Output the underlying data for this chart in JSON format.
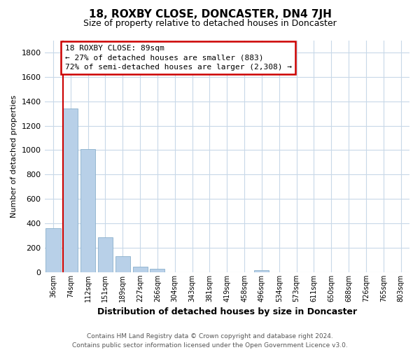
{
  "title": "18, ROXBY CLOSE, DONCASTER, DN4 7JH",
  "subtitle": "Size of property relative to detached houses in Doncaster",
  "xlabel": "Distribution of detached houses by size in Doncaster",
  "ylabel": "Number of detached properties",
  "bar_labels": [
    "36sqm",
    "74sqm",
    "112sqm",
    "151sqm",
    "189sqm",
    "227sqm",
    "266sqm",
    "304sqm",
    "343sqm",
    "381sqm",
    "419sqm",
    "458sqm",
    "496sqm",
    "534sqm",
    "573sqm",
    "611sqm",
    "650sqm",
    "688sqm",
    "726sqm",
    "765sqm",
    "803sqm"
  ],
  "bar_values": [
    360,
    1340,
    1010,
    285,
    130,
    47,
    30,
    0,
    0,
    0,
    0,
    0,
    18,
    0,
    0,
    0,
    0,
    0,
    0,
    0,
    0
  ],
  "bar_color": "#b8d0e8",
  "bar_edge_color": "#8ab0cc",
  "property_line_color": "#cc0000",
  "annotation_line0": "18 ROXBY CLOSE: 89sqm",
  "annotation_line1": "← 27% of detached houses are smaller (883)",
  "annotation_line2": "72% of semi-detached houses are larger (2,308) →",
  "annotation_box_color": "#ffffff",
  "annotation_box_edge": "#cc0000",
  "ylim": [
    0,
    1900
  ],
  "yticks": [
    0,
    200,
    400,
    600,
    800,
    1000,
    1200,
    1400,
    1600,
    1800
  ],
  "footer_line1": "Contains HM Land Registry data © Crown copyright and database right 2024.",
  "footer_line2": "Contains public sector information licensed under the Open Government Licence v3.0.",
  "grid_color": "#c8d8e8",
  "background_color": "#ffffff",
  "title_fontsize": 11,
  "subtitle_fontsize": 9,
  "ylabel_fontsize": 8,
  "xlabel_fontsize": 9,
  "tick_fontsize": 7,
  "annotation_fontsize": 8,
  "footer_fontsize": 6.5
}
